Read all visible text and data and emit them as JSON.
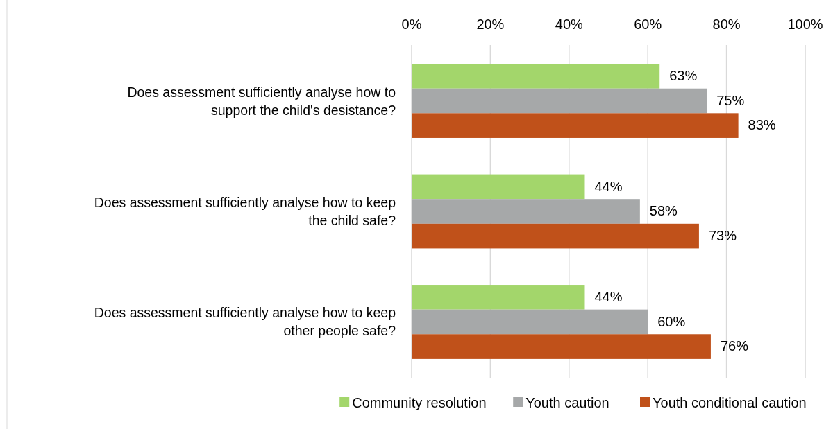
{
  "chart_data": {
    "type": "bar",
    "orientation": "horizontal",
    "categories": [
      "Does assessment sufficiently analyse how to support the child's desistance?",
      "Does assessment sufficiently analyse how to keep the child safe?",
      "Does assessment sufficiently analyse how to keep other people safe?"
    ],
    "series": [
      {
        "name": "Community resolution",
        "color": "#a3d66b",
        "values": [
          63,
          44,
          44
        ],
        "value_labels": [
          "63%",
          "44%",
          "44%"
        ]
      },
      {
        "name": "Youth caution",
        "color": "#a6a8a9",
        "values": [
          75,
          58,
          60
        ],
        "value_labels": [
          "75%",
          "58%",
          "60%"
        ]
      },
      {
        "name": "Youth conditional caution",
        "color": "#c0511a",
        "values": [
          83,
          73,
          76
        ],
        "value_labels": [
          "83%",
          "73%",
          "76%"
        ]
      }
    ],
    "xlim": [
      0,
      100
    ],
    "xticks": [
      {
        "value": 0,
        "label": "0%"
      },
      {
        "value": 20,
        "label": "20%"
      },
      {
        "value": 40,
        "label": "40%"
      },
      {
        "value": 60,
        "label": "60%"
      },
      {
        "value": 80,
        "label": "80%"
      },
      {
        "value": 100,
        "label": "100%"
      }
    ],
    "grid": "x",
    "legend": "bottom"
  }
}
